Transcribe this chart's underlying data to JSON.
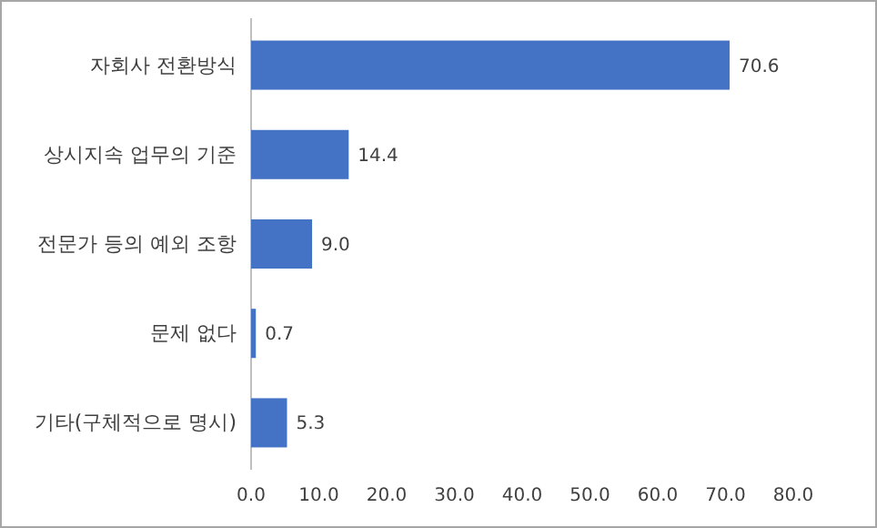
{
  "chart_data": {
    "type": "bar",
    "orientation": "horizontal",
    "categories": [
      "자회사 전환방식",
      "상시지속 업무의 기준",
      "전문가 등의 예외 조항",
      "문제 없다",
      "기타(구체적으로 명시)"
    ],
    "values": [
      70.6,
      14.4,
      9.0,
      0.7,
      5.3
    ],
    "value_labels": [
      "70.6",
      "14.4",
      "9.0",
      "0.7",
      "5.3"
    ],
    "color": "#4472c4",
    "xlim": [
      0,
      80
    ],
    "xticks": [
      {
        "value": 0,
        "label": "0.0"
      },
      {
        "value": 10,
        "label": "10.0"
      },
      {
        "value": 20,
        "label": "20.0"
      },
      {
        "value": 30,
        "label": "30.0"
      },
      {
        "value": 40,
        "label": "40.0"
      },
      {
        "value": 50,
        "label": "50.0"
      },
      {
        "value": 60,
        "label": "60.0"
      },
      {
        "value": 70,
        "label": "70.0"
      },
      {
        "value": 80,
        "label": "80.0"
      }
    ],
    "grid": false
  }
}
